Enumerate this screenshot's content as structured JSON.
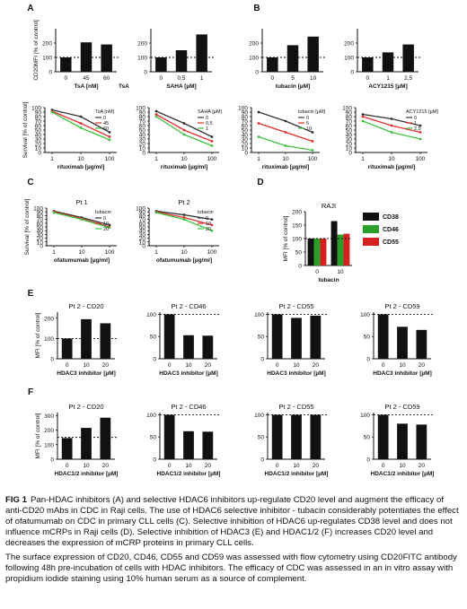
{
  "caption": {
    "lead": "FIG 1",
    "text": "Pan-HDAC inhibitors (A) and selective HDAC6 inhibitors up-regulate CD20 level and augment the efficacy of anti-CD20 mAbs in CDC in Raji cells. The use of HDAC6 selective inhibitor - tubacin considerably potentiates the effect of ofatumumab on CDC in primary CLL cells (C). Selective inhibition of HDAC6 up-regulates CD38 level and does not influence mCRPs in Raji cells (D). Selective inhibition of HDAC3 (E) and HDAC1/2 (F) increases CD20 level and decreases the expression of mCRP proteins in primary CLL cells.",
    "methods": "The surface expression of CD20, CD46, CD55 and CD59 was assessed with flow cytometry using CD20FITC antibody following 48h pre-incubation of cells with HDAC inhibitors. The efficacy of CDC was assessed in an in vitro assay with propidium iodide staining using 10% human serum as a source of complement."
  },
  "chart_data": [
    {
      "panel": "A",
      "type": "bar",
      "categories": [
        "0",
        "45",
        "60"
      ],
      "values": [
        100,
        205,
        190
      ],
      "ylim": [
        0,
        300
      ],
      "yticks": [
        0,
        100,
        200
      ],
      "ylabel": "CD20MFI [% of control]",
      "xlabel": "TsA [nM]",
      "xlabel_extra": "TsA",
      "ref": 100
    },
    {
      "panel": "A",
      "type": "bar",
      "categories": [
        "0",
        "0,5",
        "1"
      ],
      "values": [
        100,
        150,
        260
      ],
      "ylim": [
        0,
        300
      ],
      "yticks": [
        0,
        100,
        200
      ],
      "ylabel": "",
      "xlabel": "SAHA [µM]",
      "ref": 100
    },
    {
      "panel": "B",
      "type": "bar",
      "categories": [
        "0",
        "5",
        "10"
      ],
      "values": [
        100,
        185,
        245
      ],
      "ylim": [
        0,
        300
      ],
      "yticks": [
        0,
        100,
        200
      ],
      "ylabel": "",
      "xlabel": "tubacin [µM]",
      "ref": 100
    },
    {
      "panel": "B",
      "type": "bar",
      "categories": [
        "0",
        "1",
        "2,5"
      ],
      "values": [
        100,
        135,
        190
      ],
      "ylim": [
        0,
        300
      ],
      "yticks": [
        0,
        100,
        200
      ],
      "ylabel": "",
      "xlabel": "ACY1215 [µM]",
      "ref": 100
    },
    {
      "panel": "A",
      "type": "line",
      "x": [
        "1",
        "10",
        "100"
      ],
      "ylim": [
        0,
        100
      ],
      "yticks": [
        0,
        10,
        20,
        30,
        40,
        50,
        60,
        70,
        80,
        90,
        100
      ],
      "ylabel": "Survival [% of control]",
      "xlabel": "rituximab [µg/ml]",
      "legend_title": "TsA [nM]",
      "series": [
        {
          "name": "0",
          "color": "#333333",
          "values": [
            95,
            80,
            45
          ]
        },
        {
          "name": "45",
          "color": "#e03030",
          "values": [
            92,
            65,
            35
          ]
        },
        {
          "name": "60",
          "color": "#40c040",
          "values": [
            90,
            55,
            28
          ]
        }
      ]
    },
    {
      "panel": "A",
      "type": "line",
      "x": [
        "1",
        "10",
        "100"
      ],
      "ylim": [
        0,
        100
      ],
      "yticks": [
        0,
        10,
        20,
        30,
        40,
        50,
        60,
        70,
        80,
        90,
        100
      ],
      "ylabel": "",
      "xlabel": "rituximab [µg/ml]",
      "legend_title": "SAHA [µM]",
      "series": [
        {
          "name": "0",
          "color": "#333333",
          "values": [
            92,
            65,
            35
          ]
        },
        {
          "name": "0,5",
          "color": "#e03030",
          "values": [
            85,
            50,
            25
          ]
        },
        {
          "name": "1",
          "color": "#40c040",
          "values": [
            80,
            40,
            15
          ]
        }
      ]
    },
    {
      "panel": "B",
      "type": "line",
      "x": [
        "1",
        "10",
        "100"
      ],
      "ylim": [
        0,
        100
      ],
      "yticks": [
        0,
        10,
        20,
        30,
        40,
        50,
        60,
        70,
        80,
        90,
        100
      ],
      "ylabel": "",
      "xlabel": "rituximab [µg/ml]",
      "legend_title": "tubacin [µM]",
      "series": [
        {
          "name": "0",
          "color": "#333333",
          "values": [
            90,
            70,
            45
          ]
        },
        {
          "name": "5",
          "color": "#e03030",
          "values": [
            65,
            45,
            25
          ]
        },
        {
          "name": "10",
          "color": "#40c040",
          "values": [
            35,
            15,
            5
          ]
        }
      ]
    },
    {
      "panel": "B",
      "type": "line",
      "x": [
        "1",
        "10",
        "100"
      ],
      "ylim": [
        0,
        100
      ],
      "yticks": [
        0,
        10,
        20,
        30,
        40,
        50,
        60,
        70,
        80,
        90,
        100
      ],
      "ylabel": "",
      "xlabel": "rituximab [µg/ml]",
      "legend_title": "ACY1215 [µM]",
      "series": [
        {
          "name": "0",
          "color": "#333333",
          "values": [
            85,
            75,
            60
          ]
        },
        {
          "name": "1",
          "color": "#e03030",
          "values": [
            80,
            60,
            45
          ]
        },
        {
          "name": "2,5",
          "color": "#40c040",
          "values": [
            70,
            45,
            30
          ]
        }
      ]
    },
    {
      "panel": "C",
      "type": "line",
      "title": "Pt 1",
      "x": [
        "1",
        "10",
        "100"
      ],
      "ylim": [
        0,
        100
      ],
      "yticks": [
        0,
        10,
        20,
        30,
        40,
        50,
        60,
        70,
        80,
        90,
        100
      ],
      "ylabel": "Survival [% of control]",
      "xlabel": "ofatumumab [µg/ml]",
      "legend_title": "tubacin",
      "series": [
        {
          "name": "0",
          "color": "#333333",
          "values": [
            92,
            75,
            55
          ]
        },
        {
          "name": "10",
          "color": "#e03030",
          "values": [
            90,
            72,
            50
          ]
        },
        {
          "name": "20",
          "color": "#40c040",
          "values": [
            88,
            70,
            48
          ]
        }
      ]
    },
    {
      "panel": "C",
      "type": "line",
      "title": "Pt 2",
      "x": [
        "1",
        "10",
        "100"
      ],
      "ylim": [
        0,
        100
      ],
      "yticks": [
        0,
        10,
        20,
        30,
        40,
        50,
        60,
        70,
        80,
        90,
        100
      ],
      "ylabel": "",
      "xlabel": "ofatumumab [µg/ml]",
      "legend_title": "tubacin",
      "series": [
        {
          "name": "0",
          "color": "#333333",
          "values": [
            92,
            82,
            70
          ]
        },
        {
          "name": "10",
          "color": "#e03030",
          "values": [
            90,
            75,
            55
          ]
        },
        {
          "name": "20",
          "color": "#40c040",
          "values": [
            88,
            70,
            40
          ]
        }
      ]
    },
    {
      "panel": "D",
      "type": "bar",
      "title": "RAJI",
      "categories": [
        "0",
        "10"
      ],
      "xlabel": "tubacin",
      "ylim": [
        0,
        200
      ],
      "yticks": [
        0,
        50,
        100,
        150,
        200
      ],
      "ylabel": "MFI [% of control]",
      "ref": 100,
      "series": [
        {
          "name": "CD38",
          "color": "#111111",
          "values": [
            100,
            165
          ]
        },
        {
          "name": "CD46",
          "color": "#2aa02a",
          "values": [
            100,
            115
          ]
        },
        {
          "name": "CD55",
          "color": "#d62020",
          "values": [
            100,
            118
          ]
        }
      ]
    },
    {
      "panel": "E",
      "type": "bar",
      "title": "Pt 2 - CD20",
      "categories": [
        "0",
        "10",
        "20"
      ],
      "values": [
        100,
        195,
        175
      ],
      "ylim": [
        0,
        230
      ],
      "yticks": [
        0,
        100,
        200
      ],
      "ylabel": "MFI [% of control]",
      "xlabel": "HDAC3 inhibitor [µM]",
      "ref": 100
    },
    {
      "panel": "E",
      "type": "bar",
      "title": "Pt 2 - CD46",
      "categories": [
        "0",
        "10",
        "20"
      ],
      "values": [
        100,
        53,
        52
      ],
      "ylim": [
        0,
        105
      ],
      "yticks": [
        0,
        50,
        100
      ],
      "ylabel": "",
      "xlabel": "HDAC3 inhibitor [µM]",
      "ref": 100
    },
    {
      "panel": "E",
      "type": "bar",
      "title": "Pt 2 - CD55",
      "categories": [
        "0",
        "10",
        "20"
      ],
      "values": [
        100,
        92,
        97
      ],
      "ylim": [
        0,
        105
      ],
      "yticks": [
        0,
        50,
        100
      ],
      "ylabel": "",
      "xlabel": "HDAC3 inhibitor [µM]",
      "ref": 100
    },
    {
      "panel": "E",
      "type": "bar",
      "title": "Pt 2 - CD59",
      "categories": [
        "0",
        "10",
        "20"
      ],
      "values": [
        100,
        72,
        65
      ],
      "ylim": [
        0,
        105
      ],
      "yticks": [
        0,
        50,
        100
      ],
      "ylabel": "",
      "xlabel": "HDAC3 inhibitor [µM]",
      "ref": 100
    },
    {
      "panel": "F",
      "type": "bar",
      "title": "Pt 2 - CD20",
      "categories": [
        "0",
        "10",
        "20"
      ],
      "values": [
        145,
        215,
        285
      ],
      "ylim": [
        0,
        320
      ],
      "yticks": [
        0,
        100,
        200,
        300
      ],
      "ylabel": "MFI [% of control]",
      "xlabel": "HDAC1/2 inhibitor [µM]",
      "ref": 150
    },
    {
      "panel": "F",
      "type": "bar",
      "title": "Pt 2 - CD46",
      "categories": [
        "0",
        "10",
        "20"
      ],
      "values": [
        100,
        63,
        62
      ],
      "ylim": [
        0,
        105
      ],
      "yticks": [
        0,
        50,
        100
      ],
      "ylabel": "",
      "xlabel": "HDAC1/2 inhibitor [µM]",
      "ref": 100
    },
    {
      "panel": "F",
      "type": "bar",
      "title": "Pt 2 - CD55",
      "categories": [
        "0",
        "10",
        "20"
      ],
      "values": [
        100,
        100,
        100
      ],
      "ylim": [
        0,
        105
      ],
      "yticks": [
        0,
        50,
        100
      ],
      "ylabel": "",
      "xlabel": "HDAC1/2 inhibitor [µM]",
      "ref": 100
    },
    {
      "panel": "F",
      "type": "bar",
      "title": "Pt 2 - CD59",
      "categories": [
        "0",
        "10",
        "20"
      ],
      "values": [
        100,
        80,
        78
      ],
      "ylim": [
        0,
        105
      ],
      "yticks": [
        0,
        50,
        100
      ],
      "ylabel": "",
      "xlabel": "HDAC1/2 inhibitor [µM]",
      "ref": 100
    }
  ]
}
